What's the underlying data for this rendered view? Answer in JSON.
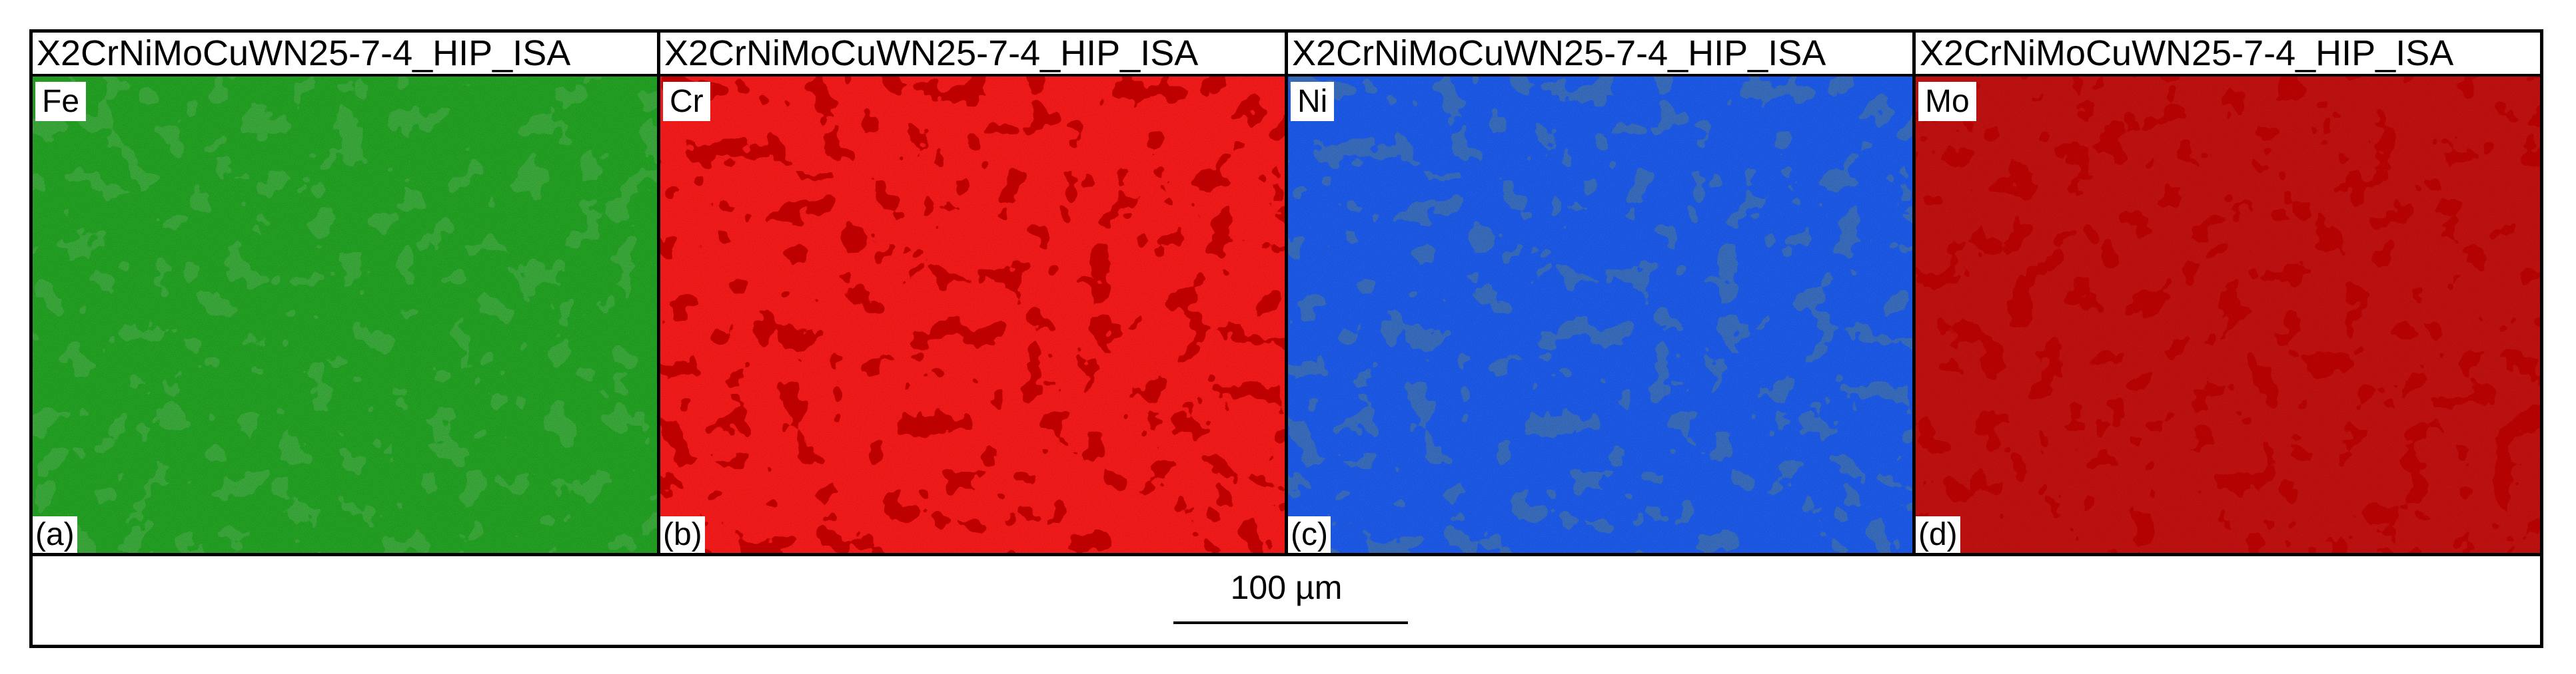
{
  "panels": [
    {
      "title": "X2CrNiMoCuWN25-7-4_HIP_ISA",
      "element": "Fe",
      "label": "(a)"
    },
    {
      "title": "X2CrNiMoCuWN25-7-4_HIP_ISA",
      "element": "Cr",
      "label": "(b)"
    },
    {
      "title": "X2CrNiMoCuWN25-7-4_HIP_ISA",
      "element": "Ni",
      "label": "(c)"
    },
    {
      "title": "X2CrNiMoCuWN25-7-4_HIP_ISA",
      "element": "Mo",
      "label": "(d)"
    }
  ],
  "scale_bar": "100 µm"
}
